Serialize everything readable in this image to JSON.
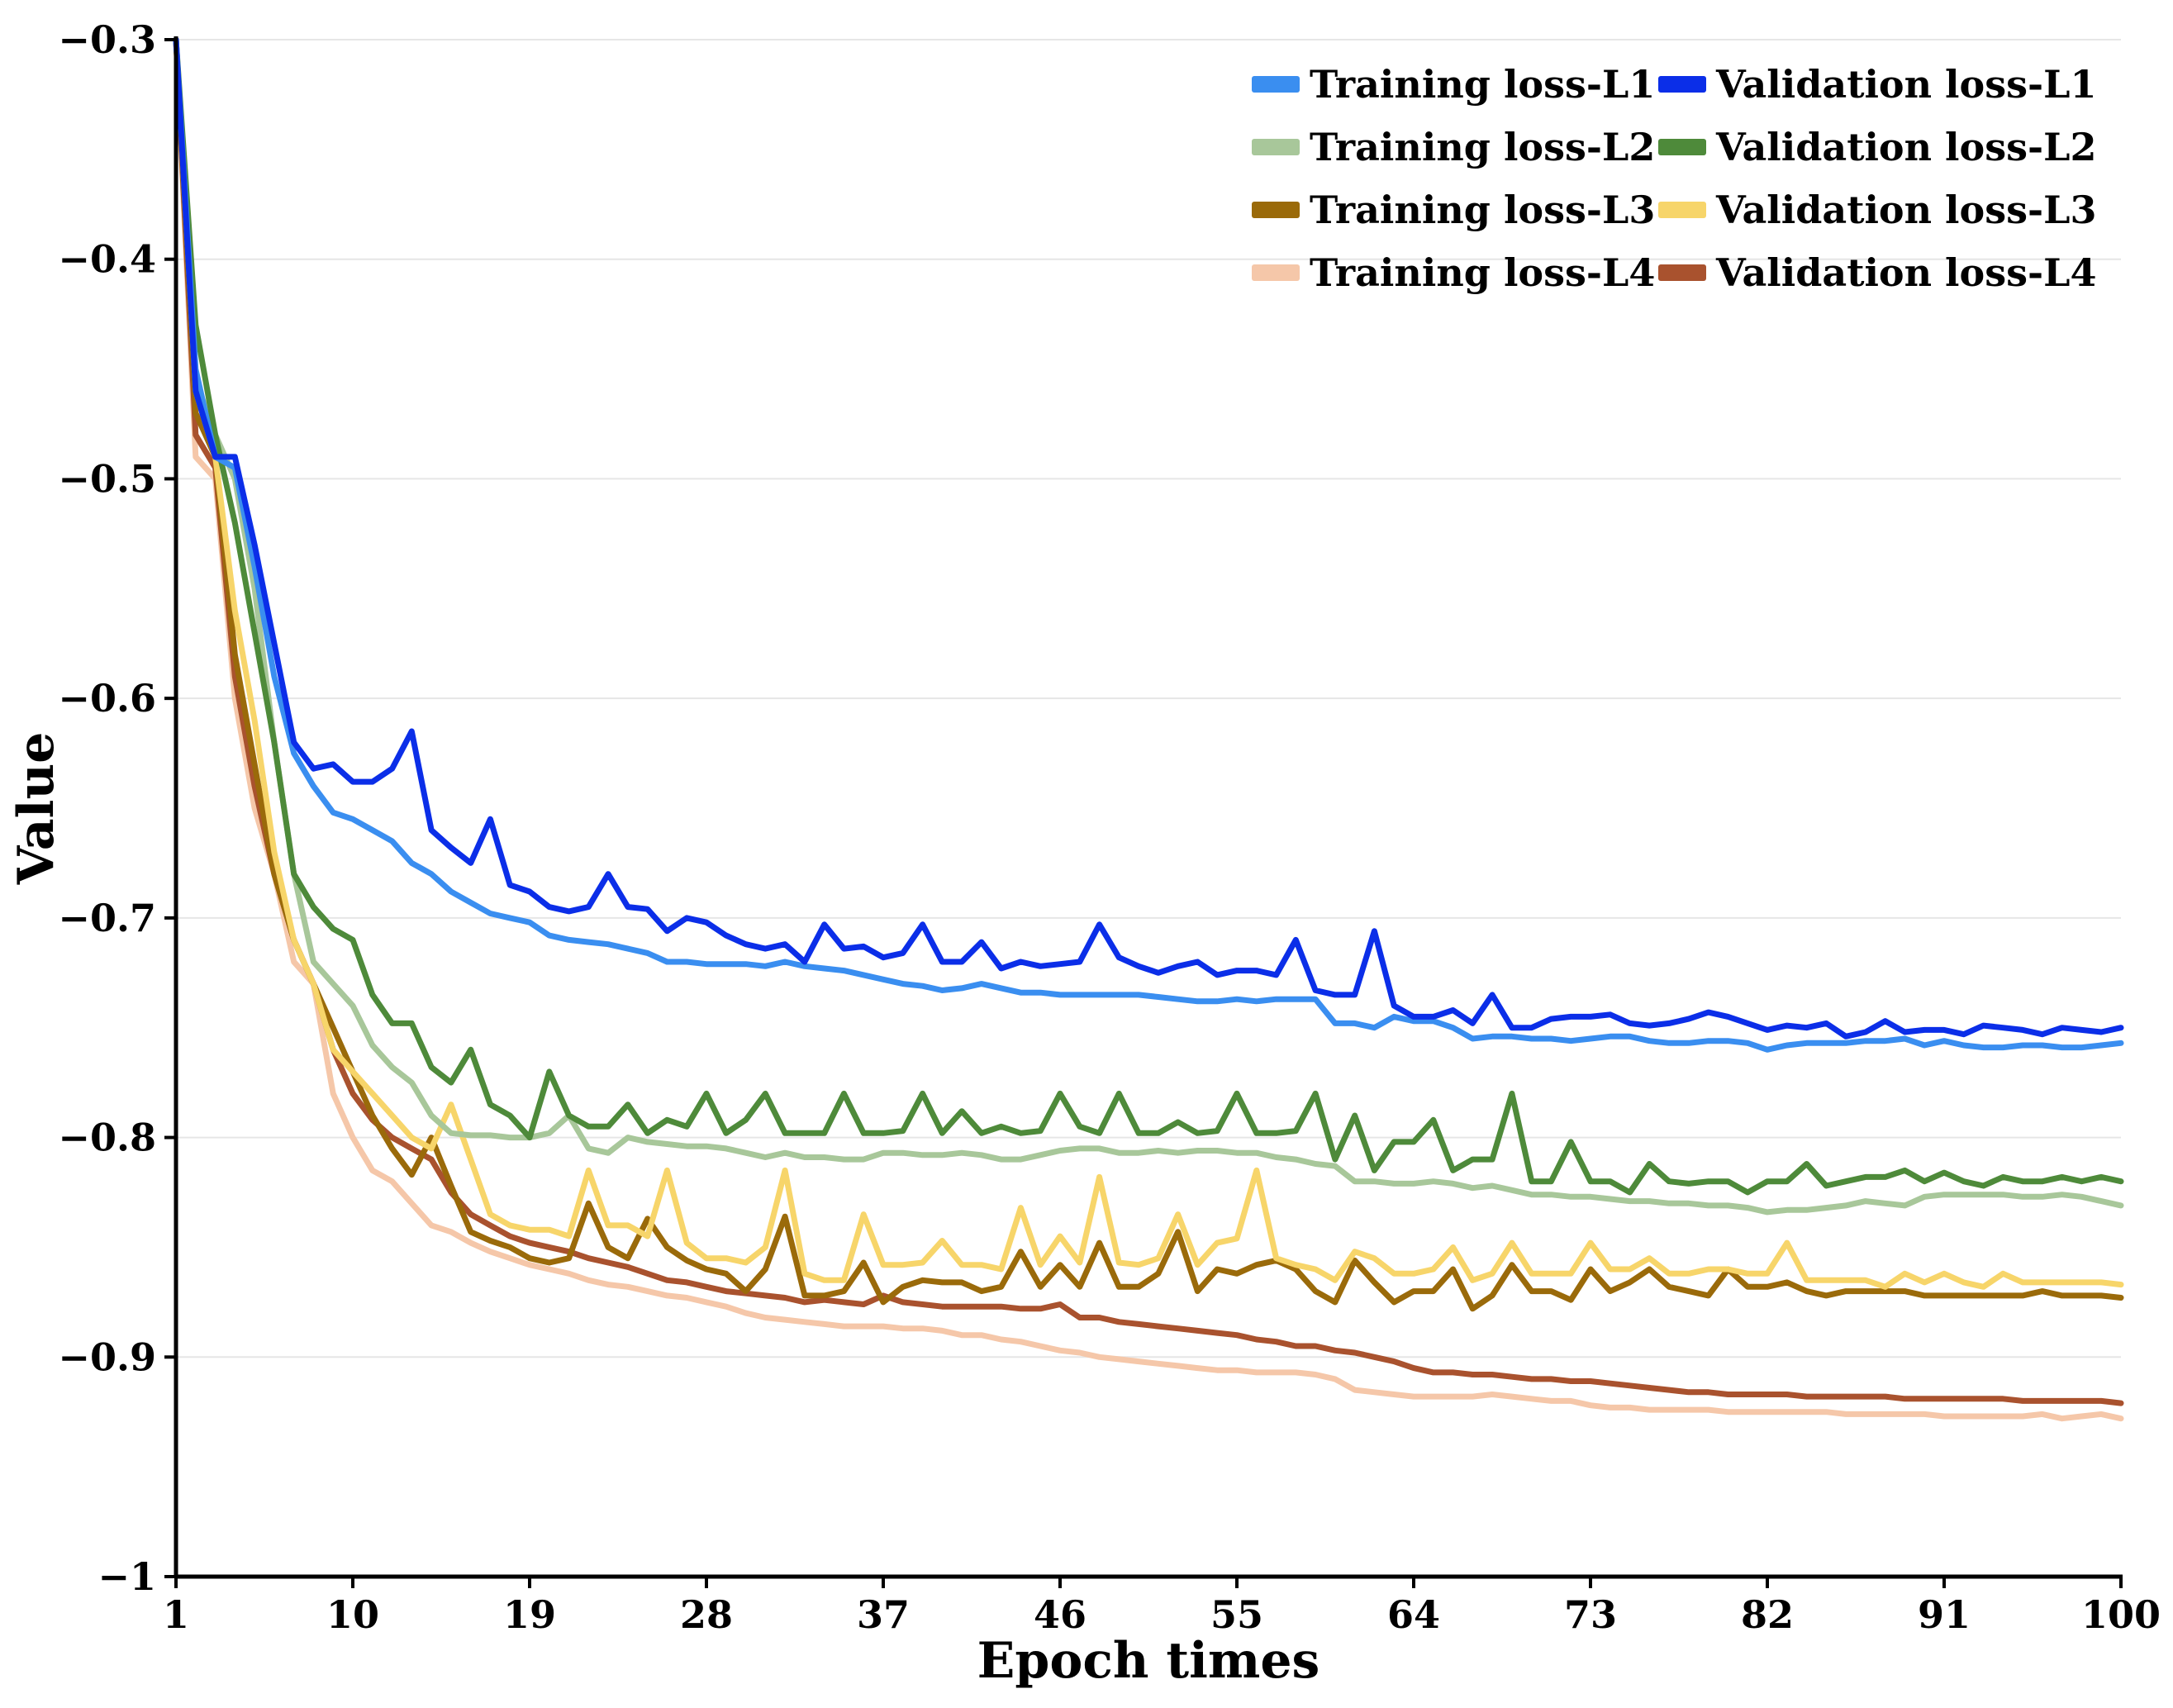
{
  "chart_data": {
    "type": "line",
    "title": "",
    "xlabel": "Epoch times",
    "ylabel": "Value",
    "xlim": [
      1,
      100
    ],
    "ylim": [
      -1,
      -0.3
    ],
    "xticks": [
      1,
      10,
      19,
      28,
      37,
      46,
      55,
      64,
      73,
      82,
      91,
      100
    ],
    "xtick_labels": [
      "1",
      "10",
      "19",
      "28",
      "37",
      "46",
      "55",
      "64",
      "73",
      "82",
      "91",
      "100"
    ],
    "yticks": [
      -1,
      -0.9,
      -0.8,
      -0.7,
      -0.6,
      -0.5,
      -0.4,
      -0.3
    ],
    "ytick_labels": [
      "−1",
      "−0.9",
      "−0.8",
      "−0.7",
      "−0.6",
      "−0.5",
      "−0.4",
      "−0.3"
    ],
    "grid": "horizontal",
    "legend_position": "top-right",
    "series": [
      {
        "name": "Training loss-L1",
        "color": "#3a8ef0",
        "values": [
          -0.3,
          -0.45,
          -0.49,
          -0.495,
          -0.54,
          -0.59,
          -0.625,
          -0.64,
          -0.652,
          -0.655,
          -0.66,
          -0.665,
          -0.675,
          -0.68,
          -0.688,
          -0.693,
          -0.698,
          -0.7,
          -0.702,
          -0.708,
          -0.71,
          -0.711,
          -0.712,
          -0.714,
          -0.716,
          -0.72,
          -0.72,
          -0.721,
          -0.721,
          -0.721,
          -0.722,
          -0.72,
          -0.722,
          -0.723,
          -0.724,
          -0.726,
          -0.728,
          -0.73,
          -0.731,
          -0.733,
          -0.732,
          -0.73,
          -0.732,
          -0.734,
          -0.734,
          -0.735,
          -0.735,
          -0.735,
          -0.735,
          -0.735,
          -0.736,
          -0.737,
          -0.738,
          -0.738,
          -0.737,
          -0.738,
          -0.737,
          -0.737,
          -0.737,
          -0.748,
          -0.748,
          -0.75,
          -0.745,
          -0.747,
          -0.747,
          -0.75,
          -0.755,
          -0.754,
          -0.754,
          -0.755,
          -0.755,
          -0.756,
          -0.755,
          -0.754,
          -0.754,
          -0.756,
          -0.757,
          -0.757,
          -0.756,
          -0.756,
          -0.757,
          -0.76,
          -0.758,
          -0.757,
          -0.757,
          -0.757,
          -0.756,
          -0.756,
          -0.755,
          -0.758,
          -0.756,
          -0.758,
          -0.759,
          -0.759,
          -0.758,
          -0.758,
          -0.759,
          -0.759,
          -0.758,
          -0.757
        ]
      },
      {
        "name": "Validation loss-L1",
        "color": "#0b2ee8",
        "values": [
          -0.3,
          -0.46,
          -0.49,
          -0.49,
          -0.53,
          -0.575,
          -0.62,
          -0.632,
          -0.63,
          -0.638,
          -0.638,
          -0.632,
          -0.615,
          -0.66,
          -0.668,
          -0.675,
          -0.655,
          -0.685,
          -0.688,
          -0.695,
          -0.697,
          -0.695,
          -0.68,
          -0.695,
          -0.696,
          -0.706,
          -0.7,
          -0.702,
          -0.708,
          -0.712,
          -0.714,
          -0.712,
          -0.72,
          -0.703,
          -0.714,
          -0.713,
          -0.718,
          -0.716,
          -0.703,
          -0.72,
          -0.72,
          -0.711,
          -0.723,
          -0.72,
          -0.722,
          -0.721,
          -0.72,
          -0.703,
          -0.718,
          -0.722,
          -0.725,
          -0.722,
          -0.72,
          -0.726,
          -0.724,
          -0.724,
          -0.726,
          -0.71,
          -0.733,
          -0.735,
          -0.735,
          -0.706,
          -0.74,
          -0.745,
          -0.745,
          -0.742,
          -0.748,
          -0.735,
          -0.75,
          -0.75,
          -0.746,
          -0.745,
          -0.745,
          -0.744,
          -0.748,
          -0.749,
          -0.748,
          -0.746,
          -0.743,
          -0.745,
          -0.748,
          -0.751,
          -0.749,
          -0.75,
          -0.748,
          -0.754,
          -0.752,
          -0.747,
          -0.752,
          -0.751,
          -0.751,
          -0.753,
          -0.749,
          -0.75,
          -0.751,
          -0.753,
          -0.75,
          -0.751,
          -0.752,
          -0.75
        ]
      },
      {
        "name": "Training loss-L2",
        "color": "#a8c79a",
        "values": [
          -0.3,
          -0.455,
          -0.48,
          -0.5,
          -0.55,
          -0.62,
          -0.68,
          -0.72,
          -0.73,
          -0.74,
          -0.758,
          -0.768,
          -0.775,
          -0.79,
          -0.798,
          -0.799,
          -0.799,
          -0.8,
          -0.8,
          -0.798,
          -0.79,
          -0.805,
          -0.807,
          -0.8,
          -0.802,
          -0.803,
          -0.804,
          -0.804,
          -0.805,
          -0.807,
          -0.809,
          -0.807,
          -0.809,
          -0.809,
          -0.81,
          -0.81,
          -0.807,
          -0.807,
          -0.808,
          -0.808,
          -0.807,
          -0.808,
          -0.81,
          -0.81,
          -0.808,
          -0.806,
          -0.805,
          -0.805,
          -0.807,
          -0.807,
          -0.806,
          -0.807,
          -0.806,
          -0.806,
          -0.807,
          -0.807,
          -0.809,
          -0.81,
          -0.812,
          -0.813,
          -0.82,
          -0.82,
          -0.821,
          -0.821,
          -0.82,
          -0.821,
          -0.823,
          -0.822,
          -0.824,
          -0.826,
          -0.826,
          -0.827,
          -0.827,
          -0.828,
          -0.829,
          -0.829,
          -0.83,
          -0.83,
          -0.831,
          -0.831,
          -0.832,
          -0.834,
          -0.833,
          -0.833,
          -0.832,
          -0.831,
          -0.829,
          -0.83,
          -0.831,
          -0.827,
          -0.826,
          -0.826,
          -0.826,
          -0.826,
          -0.827,
          -0.827,
          -0.826,
          -0.827,
          -0.829,
          -0.831
        ]
      },
      {
        "name": "Validation loss-L2",
        "color": "#4e8a3a",
        "values": [
          -0.3,
          -0.43,
          -0.48,
          -0.52,
          -0.57,
          -0.62,
          -0.68,
          -0.695,
          -0.705,
          -0.71,
          -0.735,
          -0.748,
          -0.748,
          -0.768,
          -0.775,
          -0.76,
          -0.785,
          -0.79,
          -0.8,
          -0.77,
          -0.79,
          -0.795,
          -0.795,
          -0.785,
          -0.798,
          -0.792,
          -0.795,
          -0.78,
          -0.798,
          -0.792,
          -0.78,
          -0.798,
          -0.798,
          -0.798,
          -0.78,
          -0.798,
          -0.798,
          -0.797,
          -0.78,
          -0.798,
          -0.788,
          -0.798,
          -0.795,
          -0.798,
          -0.797,
          -0.78,
          -0.795,
          -0.798,
          -0.78,
          -0.798,
          -0.798,
          -0.793,
          -0.798,
          -0.797,
          -0.78,
          -0.798,
          -0.798,
          -0.797,
          -0.78,
          -0.81,
          -0.79,
          -0.815,
          -0.802,
          -0.802,
          -0.792,
          -0.815,
          -0.81,
          -0.81,
          -0.78,
          -0.82,
          -0.82,
          -0.802,
          -0.82,
          -0.82,
          -0.825,
          -0.812,
          -0.82,
          -0.821,
          -0.82,
          -0.82,
          -0.825,
          -0.82,
          -0.82,
          -0.812,
          -0.822,
          -0.82,
          -0.818,
          -0.818,
          -0.815,
          -0.82,
          -0.816,
          -0.82,
          -0.822,
          -0.818,
          -0.82,
          -0.82,
          -0.818,
          -0.82,
          -0.818,
          -0.82
        ]
      },
      {
        "name": "Training loss-L3",
        "color": "#9a6a0a",
        "values": [
          -0.3,
          -0.47,
          -0.49,
          -0.58,
          -0.63,
          -0.68,
          -0.71,
          -0.73,
          -0.75,
          -0.77,
          -0.79,
          -0.805,
          -0.817,
          -0.8,
          -0.822,
          -0.843,
          -0.847,
          -0.85,
          -0.855,
          -0.857,
          -0.855,
          -0.83,
          -0.85,
          -0.855,
          -0.837,
          -0.85,
          -0.856,
          -0.86,
          -0.862,
          -0.87,
          -0.86,
          -0.836,
          -0.872,
          -0.872,
          -0.87,
          -0.857,
          -0.875,
          -0.868,
          -0.865,
          -0.866,
          -0.866,
          -0.87,
          -0.868,
          -0.852,
          -0.868,
          -0.858,
          -0.868,
          -0.848,
          -0.868,
          -0.868,
          -0.862,
          -0.843,
          -0.87,
          -0.86,
          -0.862,
          -0.858,
          -0.856,
          -0.86,
          -0.87,
          -0.875,
          -0.856,
          -0.866,
          -0.875,
          -0.87,
          -0.87,
          -0.86,
          -0.878,
          -0.872,
          -0.858,
          -0.87,
          -0.87,
          -0.874,
          -0.86,
          -0.87,
          -0.866,
          -0.86,
          -0.868,
          -0.87,
          -0.872,
          -0.86,
          -0.868,
          -0.868,
          -0.866,
          -0.87,
          -0.872,
          -0.87,
          -0.87,
          -0.87,
          -0.87,
          -0.872,
          -0.872,
          -0.872,
          -0.872,
          -0.872,
          -0.872,
          -0.87,
          -0.872,
          -0.872,
          -0.872,
          -0.873
        ]
      },
      {
        "name": "Validation loss-L3",
        "color": "#f7d56a",
        "values": [
          -0.3,
          -0.46,
          -0.49,
          -0.56,
          -0.61,
          -0.67,
          -0.71,
          -0.73,
          -0.76,
          -0.77,
          -0.78,
          -0.79,
          -0.8,
          -0.805,
          -0.785,
          -0.81,
          -0.835,
          -0.84,
          -0.842,
          -0.842,
          -0.845,
          -0.815,
          -0.84,
          -0.84,
          -0.845,
          -0.815,
          -0.848,
          -0.855,
          -0.855,
          -0.857,
          -0.85,
          -0.815,
          -0.862,
          -0.865,
          -0.865,
          -0.835,
          -0.858,
          -0.858,
          -0.857,
          -0.847,
          -0.858,
          -0.858,
          -0.86,
          -0.832,
          -0.858,
          -0.845,
          -0.857,
          -0.818,
          -0.857,
          -0.858,
          -0.855,
          -0.835,
          -0.858,
          -0.848,
          -0.846,
          -0.815,
          -0.855,
          -0.858,
          -0.86,
          -0.865,
          -0.852,
          -0.855,
          -0.862,
          -0.862,
          -0.86,
          -0.85,
          -0.865,
          -0.862,
          -0.848,
          -0.862,
          -0.862,
          -0.862,
          -0.848,
          -0.86,
          -0.86,
          -0.855,
          -0.862,
          -0.862,
          -0.86,
          -0.86,
          -0.862,
          -0.862,
          -0.848,
          -0.865,
          -0.865,
          -0.865,
          -0.865,
          -0.868,
          -0.862,
          -0.866,
          -0.862,
          -0.866,
          -0.868,
          -0.862,
          -0.866,
          -0.866,
          -0.866,
          -0.866,
          -0.866,
          -0.867
        ]
      },
      {
        "name": "Training loss-L4",
        "color": "#f5c7a9",
        "values": [
          -0.3,
          -0.49,
          -0.5,
          -0.6,
          -0.65,
          -0.68,
          -0.72,
          -0.73,
          -0.78,
          -0.8,
          -0.815,
          -0.82,
          -0.83,
          -0.84,
          -0.843,
          -0.848,
          -0.852,
          -0.855,
          -0.858,
          -0.86,
          -0.862,
          -0.865,
          -0.867,
          -0.868,
          -0.87,
          -0.872,
          -0.873,
          -0.875,
          -0.877,
          -0.88,
          -0.882,
          -0.883,
          -0.884,
          -0.885,
          -0.886,
          -0.886,
          -0.886,
          -0.887,
          -0.887,
          -0.888,
          -0.89,
          -0.89,
          -0.892,
          -0.893,
          -0.895,
          -0.897,
          -0.898,
          -0.9,
          -0.901,
          -0.902,
          -0.903,
          -0.904,
          -0.905,
          -0.906,
          -0.906,
          -0.907,
          -0.907,
          -0.907,
          -0.908,
          -0.91,
          -0.915,
          -0.916,
          -0.917,
          -0.918,
          -0.918,
          -0.918,
          -0.918,
          -0.917,
          -0.918,
          -0.919,
          -0.92,
          -0.92,
          -0.922,
          -0.923,
          -0.923,
          -0.924,
          -0.924,
          -0.924,
          -0.924,
          -0.925,
          -0.925,
          -0.925,
          -0.925,
          -0.925,
          -0.925,
          -0.926,
          -0.926,
          -0.926,
          -0.926,
          -0.926,
          -0.927,
          -0.927,
          -0.927,
          -0.927,
          -0.927,
          -0.926,
          -0.928,
          -0.927,
          -0.926,
          -0.928
        ]
      },
      {
        "name": "Validation loss-L4",
        "color": "#a9522e",
        "values": [
          -0.3,
          -0.48,
          -0.495,
          -0.59,
          -0.64,
          -0.68,
          -0.71,
          -0.73,
          -0.76,
          -0.78,
          -0.792,
          -0.8,
          -0.805,
          -0.81,
          -0.825,
          -0.835,
          -0.84,
          -0.845,
          -0.848,
          -0.85,
          -0.852,
          -0.855,
          -0.857,
          -0.859,
          -0.862,
          -0.865,
          -0.866,
          -0.868,
          -0.87,
          -0.871,
          -0.872,
          -0.873,
          -0.875,
          -0.874,
          -0.875,
          -0.876,
          -0.872,
          -0.875,
          -0.876,
          -0.877,
          -0.877,
          -0.877,
          -0.877,
          -0.878,
          -0.878,
          -0.876,
          -0.882,
          -0.882,
          -0.884,
          -0.885,
          -0.886,
          -0.887,
          -0.888,
          -0.889,
          -0.89,
          -0.892,
          -0.893,
          -0.895,
          -0.895,
          -0.897,
          -0.898,
          -0.9,
          -0.902,
          -0.905,
          -0.907,
          -0.907,
          -0.908,
          -0.908,
          -0.909,
          -0.91,
          -0.91,
          -0.911,
          -0.911,
          -0.912,
          -0.913,
          -0.914,
          -0.915,
          -0.916,
          -0.916,
          -0.917,
          -0.917,
          -0.917,
          -0.917,
          -0.918,
          -0.918,
          -0.918,
          -0.918,
          -0.918,
          -0.919,
          -0.919,
          -0.919,
          -0.919,
          -0.919,
          -0.919,
          -0.92,
          -0.92,
          -0.92,
          -0.92,
          -0.92,
          -0.921
        ]
      }
    ]
  }
}
